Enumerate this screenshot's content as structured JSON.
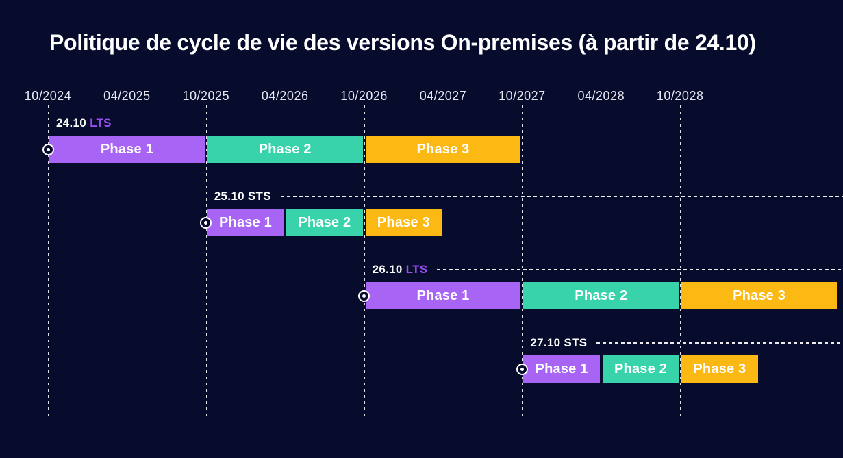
{
  "title": "Politique de cycle de vie des versions On-premises (à partir de 24.10)",
  "colors": {
    "background": "#070c2d",
    "phase1": "#a865f5",
    "phase2": "#38d3ab",
    "phase3": "#fcb813",
    "lts_text": "#9c4df2",
    "sts_text": "#ffffff",
    "white_text": "#ffffff",
    "axis_text": "#e8e8f2"
  },
  "chart_data": {
    "type": "gantt",
    "title": "Politique de cycle de vie des versions On-premises (à partir de 24.10)",
    "x_axis": {
      "type": "time",
      "tick_labels": [
        "10/2024",
        "04/2025",
        "10/2025",
        "04/2026",
        "10/2026",
        "04/2027",
        "10/2027",
        "04/2028",
        "10/2028"
      ],
      "months_per_tick": 6,
      "gridlines_at": [
        "10/2024",
        "10/2025",
        "10/2026",
        "10/2027",
        "10/2028"
      ],
      "gridline_style": "dashed-vertical"
    },
    "rows": [
      {
        "version": "24.10",
        "channel": "LTS",
        "leader_line": false,
        "start_marker": true,
        "phases": [
          {
            "label": "Phase 1",
            "start": "10/2024",
            "end": "10/2025",
            "color_key": "phase1"
          },
          {
            "label": "Phase 2",
            "start": "10/2025",
            "end": "10/2026",
            "color_key": "phase2"
          },
          {
            "label": "Phase 3",
            "start": "10/2026",
            "end": "10/2027",
            "color_key": "phase3"
          }
        ]
      },
      {
        "version": "25.10",
        "channel": "STS",
        "leader_line": true,
        "start_marker": true,
        "phases": [
          {
            "label": "Phase 1",
            "start": "10/2025",
            "end": "04/2026",
            "color_key": "phase1"
          },
          {
            "label": "Phase 2",
            "start": "04/2026",
            "end": "10/2026",
            "color_key": "phase2"
          },
          {
            "label": "Phase 3",
            "start": "10/2026",
            "end": "04/2027",
            "color_key": "phase3"
          }
        ]
      },
      {
        "version": "26.10",
        "channel": "LTS",
        "leader_line": true,
        "start_marker": true,
        "phases": [
          {
            "label": "Phase 1",
            "start": "10/2026",
            "end": "10/2027",
            "color_key": "phase1"
          },
          {
            "label": "Phase 2",
            "start": "10/2027",
            "end": "10/2028",
            "color_key": "phase2"
          },
          {
            "label": "Phase 3",
            "start": "10/2028",
            "end": "10/2029",
            "color_key": "phase3",
            "clipped_at_right_edge": true
          }
        ]
      },
      {
        "version": "27.10",
        "channel": "STS",
        "leader_line": true,
        "start_marker": true,
        "phases": [
          {
            "label": "Phase 1",
            "start": "10/2027",
            "end": "04/2028",
            "color_key": "phase1"
          },
          {
            "label": "Phase 2",
            "start": "04/2028",
            "end": "10/2028",
            "color_key": "phase2"
          },
          {
            "label": "Phase 3",
            "start": "10/2028",
            "end": "04/2029",
            "color_key": "phase3"
          }
        ]
      }
    ]
  }
}
